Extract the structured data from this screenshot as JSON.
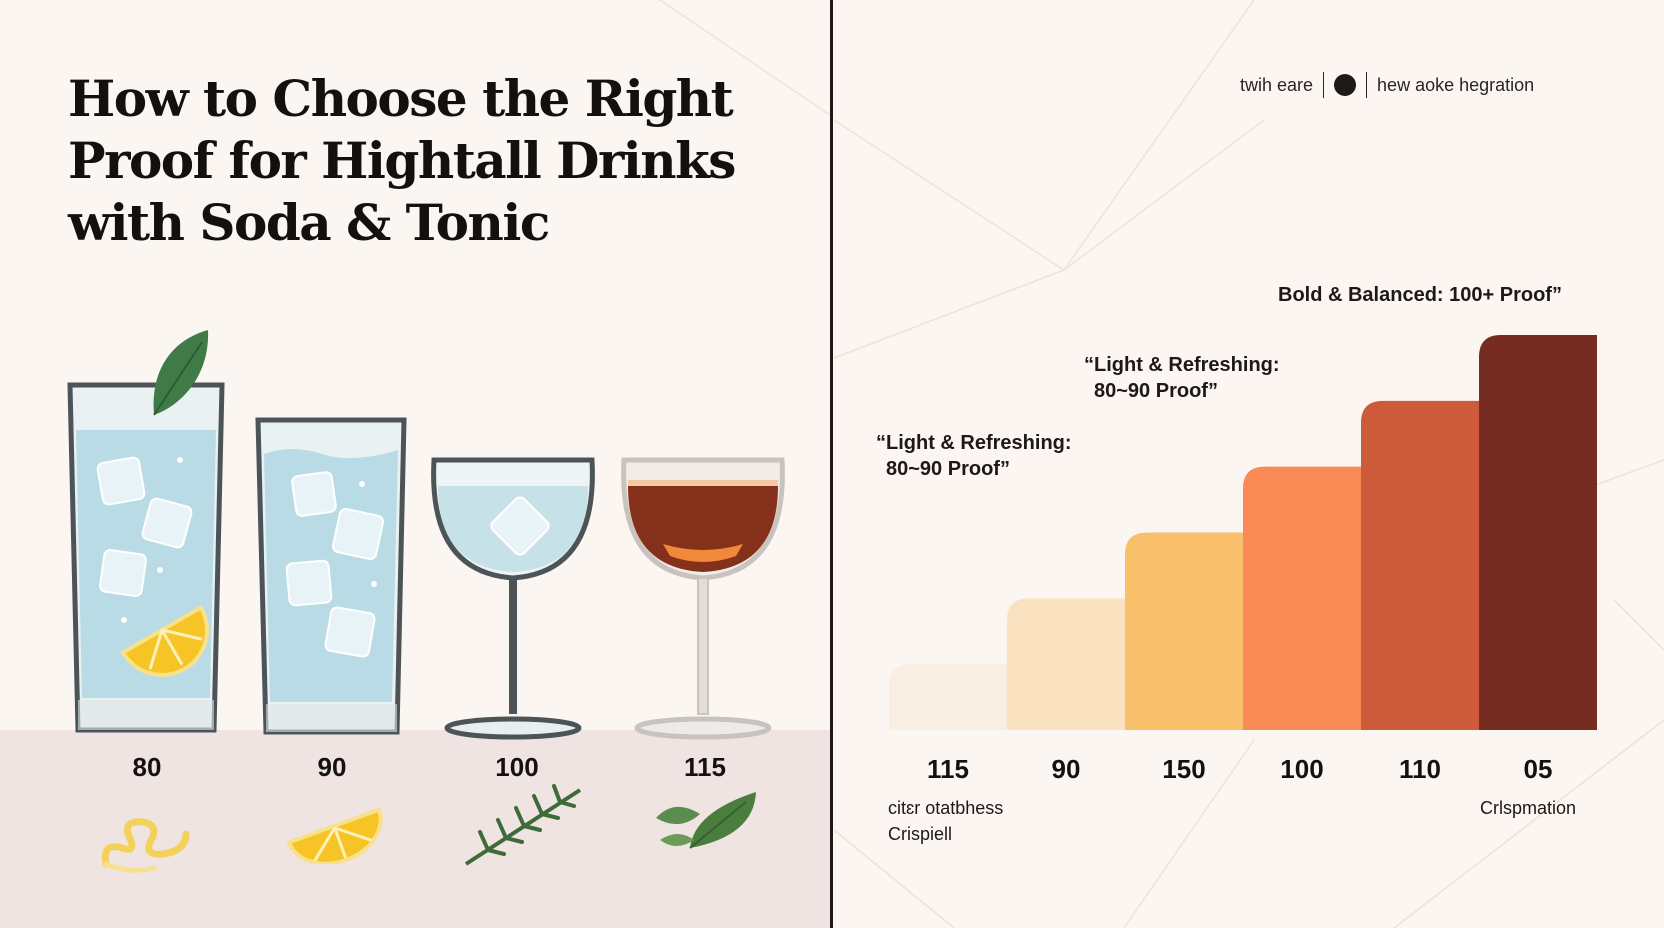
{
  "title": "How to Choose the Right Proof for Hightall Drinks with Soda & Tonic",
  "header": {
    "left_text": "twih eare",
    "right_text": "hew aoke hegration"
  },
  "glasses": [
    {
      "label": "80",
      "icon": "highball-glass-icon",
      "garnish": "lemon-peel-icon"
    },
    {
      "label": "90",
      "icon": "highball-glass-icon",
      "garnish": "lemon-wedge-icon"
    },
    {
      "label": "100",
      "icon": "coupe-glass-icon",
      "garnish": "rosemary-icon"
    },
    {
      "label": "115",
      "icon": "coupe-glass-icon",
      "garnish": "basil-icon"
    }
  ],
  "annotations": {
    "bold": "Bold & Balanced: 100+ Proof”",
    "light_upper_1": "“Light & Refreshing:",
    "light_upper_2": "80~90 Proof”",
    "light_lower_1": "“Light & Refreshing:",
    "light_lower_2": "80~90 Proof”",
    "bottom_left_1": "citɛr otatbhess",
    "bottom_left_2": "Crispiell",
    "bottom_right": "Crlspmation"
  },
  "chart_data": {
    "type": "bar",
    "categories": [
      "115",
      "90",
      "150",
      "100",
      "110",
      "05"
    ],
    "values": [
      1,
      2,
      3,
      4,
      5,
      6
    ],
    "colors": [
      "#f8efe2",
      "#fae2c1",
      "#f9c06b",
      "#f98a56",
      "#cd5a3b",
      "#772c21"
    ],
    "title": "",
    "xlabel": "",
    "ylabel": "",
    "ylim": [
      0,
      6
    ]
  },
  "colors": {
    "background": "#fbf6f1",
    "floor": "#efe4e2",
    "divider": "#1f1a18",
    "text": "#14100e"
  }
}
